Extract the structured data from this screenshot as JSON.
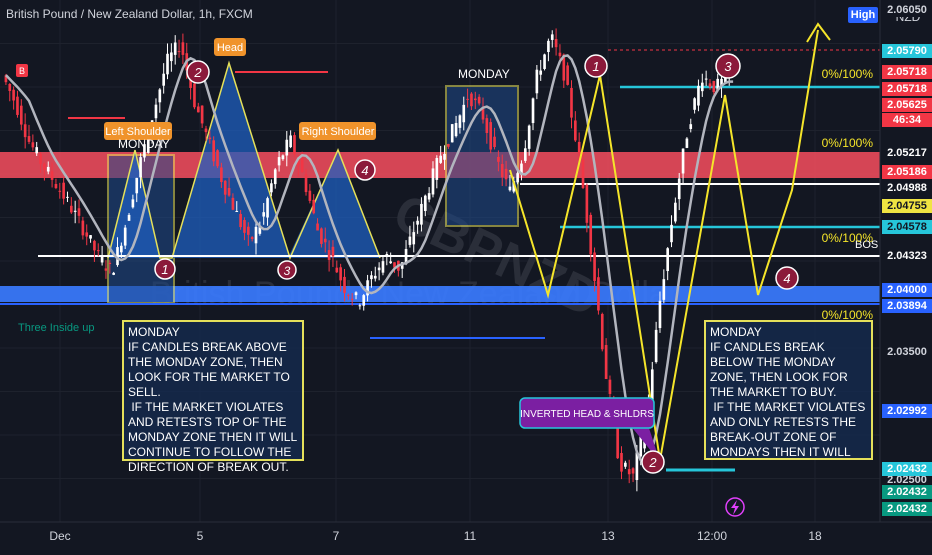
{
  "header": {
    "symbol_title": "British Pound / New Zealand Dollar, 1h, FXCM",
    "currency_label": "NZD",
    "high_badge": "High",
    "small_badge": "B",
    "watermark": "British Pound / New Zealand Dollar",
    "watermark_symbol": "GBPNZD"
  },
  "pattern_labels": {
    "left_shoulder": "Left Shoulder",
    "head": "Head",
    "right_shoulder": "Right Shoulder",
    "monday_1": "MONDAY",
    "monday_2": "MONDAY",
    "inverted_hs": "INVERTED HEAD & SHLDRS",
    "three_inside_up": "Three Inside up",
    "bos": "BOS"
  },
  "fib_labels": [
    "0%/100%",
    "0%/100%",
    "0%/100%",
    "0%/100%"
  ],
  "markers": [
    "1",
    "2",
    "3",
    "4",
    "1",
    "2",
    "3",
    "4"
  ],
  "notes": {
    "left": "MONDAY\nIF CANDLES BREAK ABOVE THE MONDAY ZONE, THEN LOOK FOR THE MARKET TO SELL.\n IF THE MARKET VIOLATES AND RETESTS TOP OF THE MONDAY ZONE THEN IT WILL CONTINUE TO FOLLOW THE DIRECTION OF BREAK OUT.",
    "right": "MONDAY\nIF CANDLES BREAK BELOW THE MONDAY ZONE, THEN LOOK FOR THE MARKET TO BUY.\n IF THE MARKET VIOLATES AND ONLY RETESTS THE BREAK-OUT ZONE OF MONDAYS THEN IT WILL"
  },
  "price_tags": [
    {
      "text": "2.06050",
      "color": "#131722",
      "fg": "#d1d4dc"
    },
    {
      "text": "2.05790",
      "color": "#26c6da",
      "fg": "#ffffff"
    },
    {
      "text": "2.05718",
      "color": "#f23645",
      "fg": "#ffffff"
    },
    {
      "text": "2.05718",
      "color": "#f23645",
      "fg": "#ffffff"
    },
    {
      "text": "2.05625",
      "color": "#f23645",
      "fg": "#ffffff"
    },
    {
      "text": "46:34",
      "color": "#f23645",
      "fg": "#ffffff"
    },
    {
      "text": "2.05217",
      "color": "#131722",
      "fg": "#ffffff"
    },
    {
      "text": "2.05186",
      "color": "#f23645",
      "fg": "#ffffff"
    },
    {
      "text": "2.04988",
      "color": "#131722",
      "fg": "#ffffff"
    },
    {
      "text": "2.04755",
      "color": "#f0e442",
      "fg": "#131722"
    },
    {
      "text": "2.04578",
      "color": "#26c6da",
      "fg": "#131722"
    },
    {
      "text": "2.04323",
      "color": "#131722",
      "fg": "#ffffff"
    },
    {
      "text": "2.04000",
      "color": "#2962ff",
      "fg": "#ffffff"
    },
    {
      "text": "2.03894",
      "color": "#2962ff",
      "fg": "#ffffff"
    },
    {
      "text": "2.03500",
      "color": "#131722",
      "fg": "#d1d4dc"
    },
    {
      "text": "2.02992",
      "color": "#2962ff",
      "fg": "#ffffff"
    },
    {
      "text": "2.02500",
      "color": "#131722",
      "fg": "#d1d4dc"
    },
    {
      "text": "2.02432",
      "color": "#26c6da",
      "fg": "#ffffff"
    },
    {
      "text": "2.02432",
      "color": "#089981",
      "fg": "#ffffff"
    },
    {
      "text": "2.02432",
      "color": "#089981",
      "fg": "#ffffff"
    }
  ],
  "chart_data": {
    "type": "line",
    "title": "British Pound / New Zealand Dollar, 1h, FXCM",
    "x_tick_labels": [
      "Dec",
      "5",
      "7",
      "11",
      "13",
      "12:00",
      "18"
    ],
    "y_tick_labels": [
      "2.04000",
      "2.03500",
      "2.02500"
    ],
    "ylim": [
      2.0215,
      2.0618
    ],
    "grid": true,
    "series": [
      {
        "values": [
          2.056,
          2.0538,
          2.0508,
          2.049,
          2.0475,
          2.0458,
          2.044,
          2.042,
          2.0408,
          2.0445,
          2.049,
          2.053,
          2.057,
          2.0585,
          2.054,
          2.051,
          2.048,
          2.0455,
          2.043,
          2.045,
          2.049,
          2.051,
          2.048,
          2.044,
          2.042,
          2.0395,
          2.0385,
          2.0405,
          2.042,
          2.041,
          2.044,
          2.047,
          2.05,
          2.052,
          2.0545,
          2.053,
          2.0495,
          2.047,
          2.05,
          2.056,
          2.059,
          2.056,
          2.05,
          2.042,
          2.033,
          2.026,
          2.025,
          2.03,
          2.039,
          2.046,
          2.052,
          2.056,
          2.055,
          2.056
        ]
      }
    ]
  }
}
